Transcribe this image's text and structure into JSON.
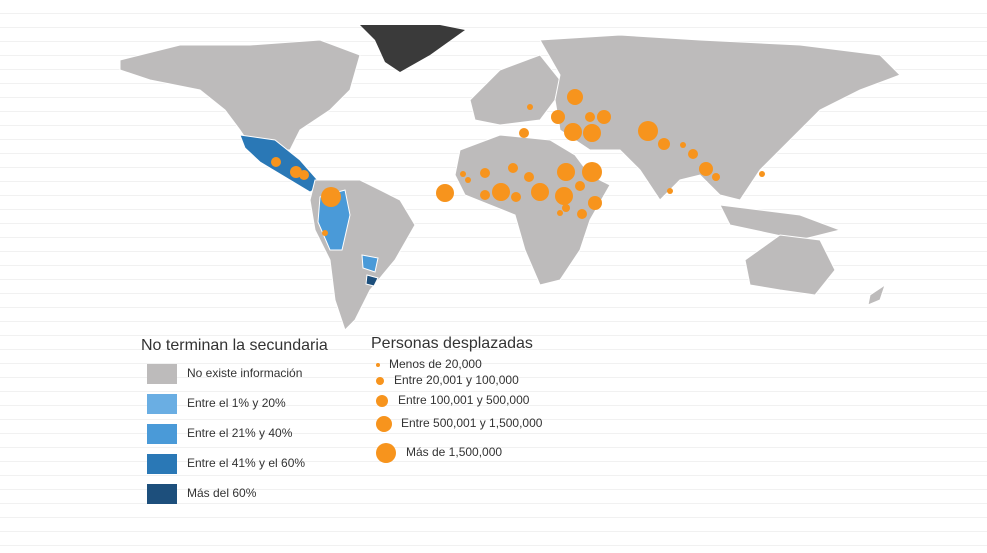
{
  "legend_education": {
    "title": "No terminan la secundaria",
    "items": [
      {
        "label": "No existe información",
        "color": "#bdbbbb"
      },
      {
        "label": "Entre el 1% y 20%",
        "color": "#6aaee3"
      },
      {
        "label": "Entre el 21% y 40%",
        "color": "#4a9ad8"
      },
      {
        "label": "Entre el 41% y el 60%",
        "color": "#2a78b6"
      },
      {
        "label": "Más del 60%",
        "color": "#1d4f7c"
      }
    ]
  },
  "legend_displaced": {
    "title": "Personas desplazadas",
    "color": "#f7941d",
    "items": [
      {
        "label": "Menos de 20,000"
      },
      {
        "label": "Entre 20,001 y 100,000"
      },
      {
        "label": "Entre 100,001 y 500,000"
      },
      {
        "label": "Entre 500,001 y 1,500,000"
      },
      {
        "label": "Más de 1,500,000"
      }
    ]
  }
}
